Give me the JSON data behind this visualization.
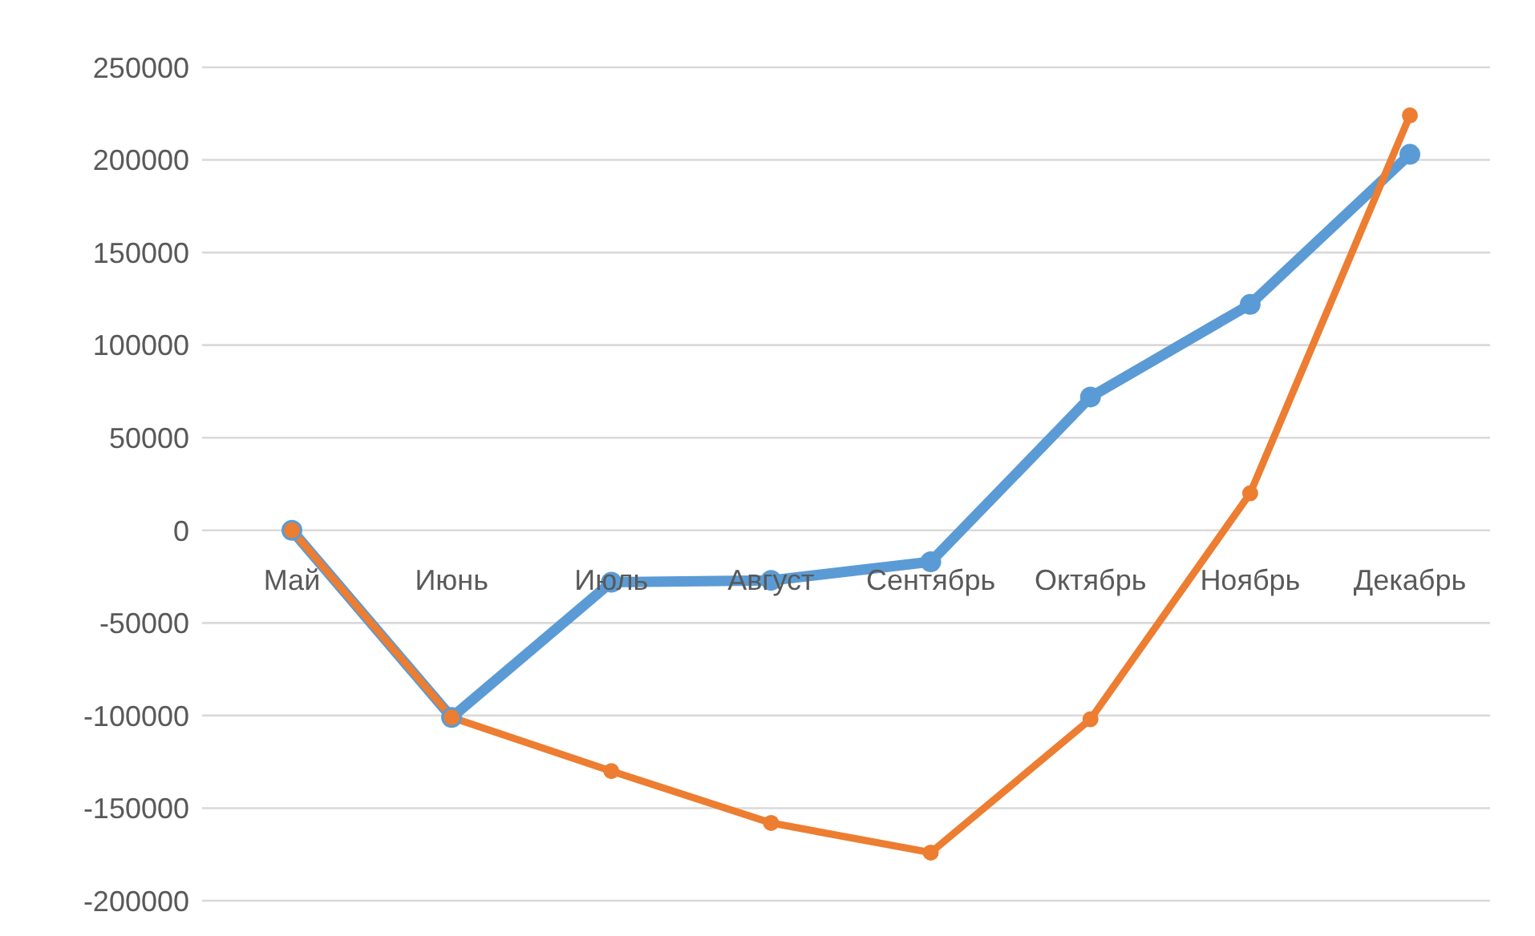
{
  "chart_data": {
    "type": "line",
    "categories": [
      "Май",
      "Июнь",
      "Июль",
      "Август",
      "Сентябрь",
      "Октябрь",
      "Ноябрь",
      "Декабрь"
    ],
    "series": [
      {
        "color": "#5b9bd5",
        "values": [
          0,
          -101000,
          -28000,
          -27000,
          -17000,
          72000,
          122000,
          203000
        ]
      },
      {
        "color": "#ed7d31",
        "values": [
          0,
          -101000,
          -130000,
          -158000,
          -174000,
          -102000,
          20000,
          224000
        ]
      }
    ],
    "ylim": [
      -200000,
      250000
    ],
    "yticks": [
      -200000,
      -150000,
      -100000,
      -50000,
      0,
      50000,
      100000,
      150000,
      200000,
      250000
    ],
    "grid": "y",
    "marker": "circle",
    "line_style": "solid"
  }
}
